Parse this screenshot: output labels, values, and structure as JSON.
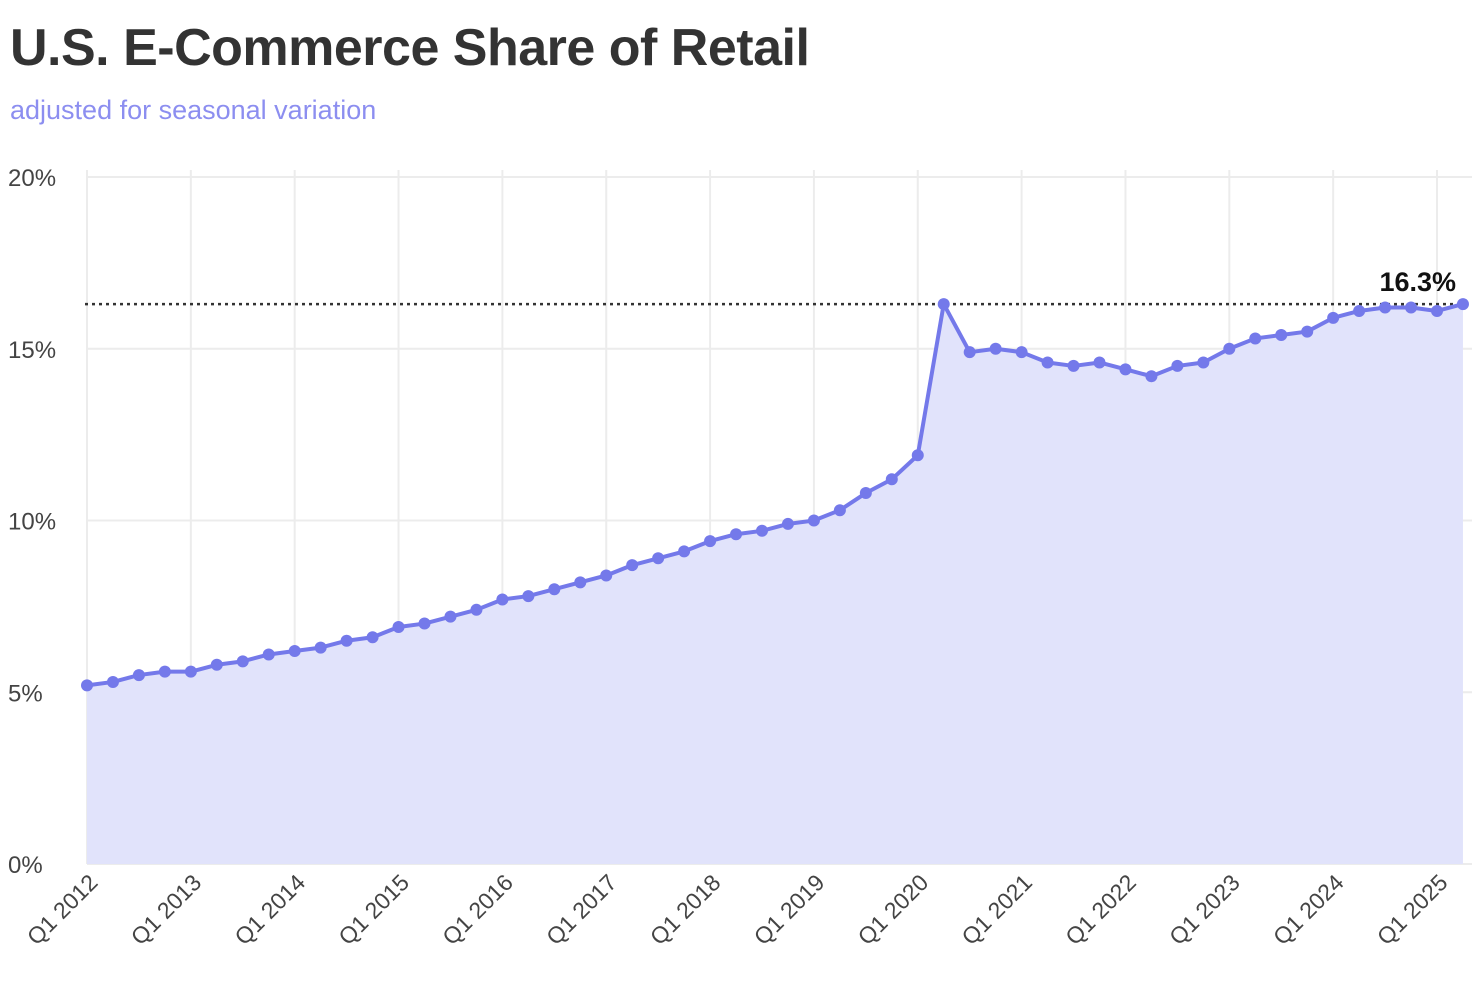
{
  "header": {
    "title": "U.S. E-Commerce Share of Retail",
    "subtitle": "adjusted for seasonal variation"
  },
  "colors": {
    "line": "#7479ea",
    "area": "#e1e3fb",
    "grid": "#ececec",
    "reference": "#333333"
  },
  "chart_data": {
    "type": "area",
    "title": "U.S. E-Commerce Share of Retail",
    "subtitle": "adjusted for seasonal variation",
    "xlabel": "",
    "ylabel": "",
    "ylim": [
      0,
      20
    ],
    "y_ticks": [
      0,
      5,
      10,
      15,
      20
    ],
    "y_tick_labels": [
      "0%",
      "5%",
      "10%",
      "15%",
      "20%"
    ],
    "x_tick_labels": [
      "Q1 2012",
      "Q1 2013",
      "Q1 2014",
      "Q1 2015",
      "Q1 2016",
      "Q1 2017",
      "Q1 2018",
      "Q1 2019",
      "Q1 2020",
      "Q1 2021",
      "Q1 2022",
      "Q1 2023",
      "Q1 2024",
      "Q1 2025"
    ],
    "grid": true,
    "legend": "none",
    "x_start": "Q1 2012",
    "x_end": "Q2 2025",
    "series": [
      {
        "values": [
          5.2,
          5.3,
          5.5,
          5.6,
          5.6,
          5.8,
          5.9,
          6.1,
          6.2,
          6.3,
          6.5,
          6.6,
          6.9,
          7.0,
          7.2,
          7.4,
          7.7,
          7.8,
          8.0,
          8.2,
          8.4,
          8.7,
          8.9,
          9.1,
          9.4,
          9.6,
          9.7,
          9.9,
          10.0,
          10.3,
          10.8,
          11.2,
          11.9,
          16.3,
          14.9,
          15.0,
          14.9,
          14.6,
          14.5,
          14.6,
          14.4,
          14.2,
          14.5,
          14.6,
          15.0,
          15.3,
          15.4,
          15.5,
          15.9,
          16.1,
          16.2,
          16.2,
          16.1,
          16.3
        ]
      }
    ],
    "reference_line": {
      "value": 16.3,
      "label": "16.3%"
    }
  }
}
